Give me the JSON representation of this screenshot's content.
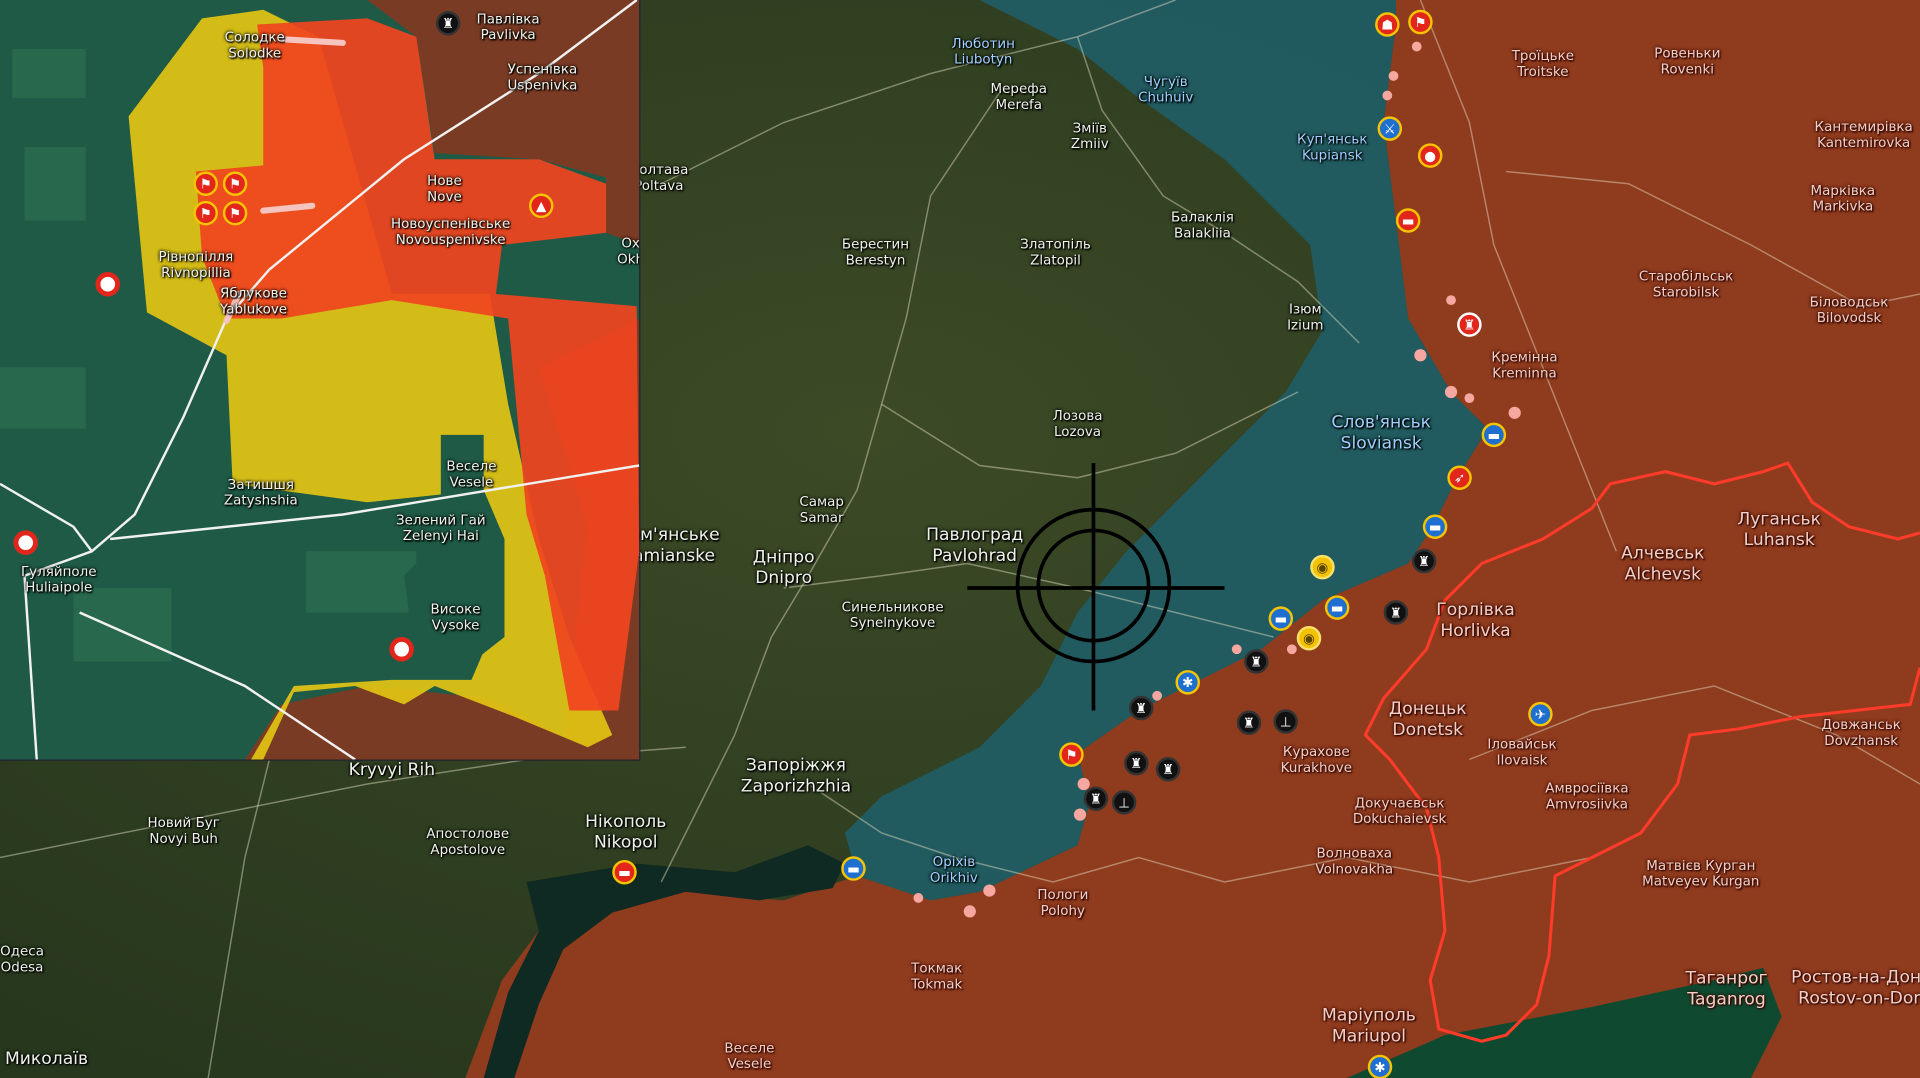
{
  "colors": {
    "occupied": "#8f3b1e",
    "contested_blue": "#1f5f6a",
    "inset_red": "#f0451f",
    "inset_yellow": "#e3c413",
    "border_line": "#ff3b2a",
    "marker_red": "#e3261b",
    "marker_blue": "#1e6fd0",
    "marker_ring": "#f6c400"
  },
  "main_labels": [
    {
      "uk": "Люботин",
      "en": "Liubotyn",
      "zone": "blue"
    },
    {
      "uk": "Мерефа",
      "en": "Merefa",
      "zone": "free"
    },
    {
      "uk": "Змiїв",
      "en": "Zmiiv",
      "zone": "free"
    },
    {
      "uk": "Чугуїв",
      "en": "Chuhuiv",
      "zone": "blue"
    },
    {
      "uk": "Полтава",
      "en": "Poltava",
      "zone": "free"
    },
    {
      "uk": "Берестин",
      "en": "Berestyn",
      "zone": "free"
    },
    {
      "uk": "Златопіль",
      "en": "Zlatopil",
      "zone": "free"
    },
    {
      "uk": "Балаклія",
      "en": "Balakliia",
      "zone": "free"
    },
    {
      "uk": "Ізюм",
      "en": "Izium",
      "zone": "free"
    },
    {
      "uk": "Лозова",
      "en": "Lozova",
      "zone": "free"
    },
    {
      "uk": "Самар",
      "en": "Samar",
      "zone": "free"
    },
    {
      "uk": "Павлоград",
      "en": "Pavlohrad",
      "zone": "big"
    },
    {
      "uk": "Дніпро",
      "en": "Dnipro",
      "zone": "big"
    },
    {
      "uk": "Кам'янське",
      "en": "Kamianske",
      "zone": "big"
    },
    {
      "uk": "Синельникове",
      "en": "Synelnykove",
      "zone": "free"
    },
    {
      "uk": "Запоріжжя",
      "en": "Zaporizhzhia",
      "zone": "big"
    },
    {
      "uk": "",
      "en": "Kryvyi Rih",
      "zone": "big"
    },
    {
      "uk": "Новий Буг",
      "en": "Novyi Buh",
      "zone": "free"
    },
    {
      "uk": "Апостолове",
      "en": "Apostolove",
      "zone": "free"
    },
    {
      "uk": "Нікополь",
      "en": "Nikopol",
      "zone": "big"
    },
    {
      "uk": "Одеса",
      "en": "Odesa",
      "zone": "free"
    },
    {
      "uk": "Миколаїв",
      "en": "",
      "zone": "big"
    },
    {
      "uk": "Оріхів",
      "en": "Orikhiv",
      "zone": "blue"
    },
    {
      "uk": "Пологи",
      "en": "Polohy",
      "zone": "occ"
    },
    {
      "uk": "Токмак",
      "en": "Tokmak",
      "zone": "occ"
    },
    {
      "uk": "Веселе",
      "en": "Vesele",
      "zone": "occ"
    },
    {
      "uk": "Троїцьке",
      "en": "Troitske",
      "zone": "occ"
    },
    {
      "uk": "Ровеньки",
      "en": "Rovenki",
      "zone": "occ"
    },
    {
      "uk": "Кантемирівка",
      "en": "Kantemirovka",
      "zone": "occ"
    },
    {
      "uk": "Куп'янськ",
      "en": "Kupiansk",
      "zone": "blue"
    },
    {
      "uk": "Марківка",
      "en": "Markivka",
      "zone": "occ"
    },
    {
      "uk": "Старобільськ",
      "en": "Starobilsk",
      "zone": "occ"
    },
    {
      "uk": "Біловодськ",
      "en": "Bilovodsk",
      "zone": "occ"
    },
    {
      "uk": "Кремінна",
      "en": "Kreminna",
      "zone": "occ"
    },
    {
      "uk": "Слов'янськ",
      "en": "Sloviansk",
      "zone": "bigblue"
    },
    {
      "uk": "Луганськ",
      "en": "Luhansk",
      "zone": "bigocc"
    },
    {
      "uk": "Алчевськ",
      "en": "Alchevsk",
      "zone": "bigocc"
    },
    {
      "uk": "Горлівка",
      "en": "Horlivka",
      "zone": "bigocc"
    },
    {
      "uk": "Донецьк",
      "en": "Donetsk",
      "zone": "bigocc"
    },
    {
      "uk": "Курахове",
      "en": "Kurakhove",
      "zone": "occ"
    },
    {
      "uk": "Іловайськ",
      "en": "Ilovaisk",
      "zone": "occ"
    },
    {
      "uk": "Довжанськ",
      "en": "Dovzhansk",
      "zone": "occ"
    },
    {
      "uk": "Докучаєвськ",
      "en": "Dokuchaievsk",
      "zone": "occ"
    },
    {
      "uk": "Амвросіївка",
      "en": "Amvrosiivka",
      "zone": "occ"
    },
    {
      "uk": "Волноваха",
      "en": "Volnovakha",
      "zone": "occ"
    },
    {
      "uk": "Матвієв Курган",
      "en": "Matveyev Kurgan",
      "zone": "occ"
    },
    {
      "uk": "Маріуполь",
      "en": "Mariupol",
      "zone": "bigocc"
    },
    {
      "uk": "Таганрог",
      "en": "Taganrog",
      "zone": "bigocc"
    },
    {
      "uk": "Ростов-на-Дону",
      "en": "Rostov-on-Don",
      "zone": "bigocc"
    }
  ],
  "inset_labels": [
    {
      "uk": "Солодке",
      "en": "Solodke"
    },
    {
      "uk": "Павлівка",
      "en": "Pavlivka"
    },
    {
      "uk": "Успенівка",
      "en": "Uspenivka"
    },
    {
      "uk": "Нове",
      "en": "Nove"
    },
    {
      "uk": "Новоуспенівське",
      "en": "Novouspenivske"
    },
    {
      "uk": "Рівнопілля",
      "en": "Rivnopillia"
    },
    {
      "uk": "Яблукове",
      "en": "Yablukove"
    },
    {
      "uk": "Затишшя",
      "en": "Zatyshshia"
    },
    {
      "uk": "Веселе",
      "en": "Vesele"
    },
    {
      "uk": "Зелений Гай",
      "en": "Zelenyi Hai"
    },
    {
      "uk": "Гуляйполе",
      "en": "Huliaipole"
    },
    {
      "uk": "Високе",
      "en": "Vysoke"
    },
    {
      "uk": "Ох",
      "en": "Okh"
    }
  ],
  "main_markers": [
    {
      "icon": "ghost",
      "style": "red"
    },
    {
      "icon": "flag",
      "style": "red"
    },
    {
      "icon": "tank",
      "style": "blue"
    },
    {
      "icon": "target",
      "style": "red"
    },
    {
      "icon": "vehicle",
      "style": "red"
    },
    {
      "icon": "fortification",
      "style": "redplain"
    },
    {
      "icon": "vehicle",
      "style": "blue"
    },
    {
      "icon": "rocket",
      "style": "red"
    },
    {
      "icon": "vehicle",
      "style": "blue"
    },
    {
      "icon": "fortification",
      "style": "black"
    },
    {
      "icon": "eye",
      "style": "yellow"
    },
    {
      "icon": "vehicle",
      "style": "blue"
    },
    {
      "icon": "vehicle",
      "style": "blue"
    },
    {
      "icon": "eye",
      "style": "yellow"
    },
    {
      "icon": "fortification",
      "style": "black"
    },
    {
      "icon": "fortification",
      "style": "black"
    },
    {
      "icon": "star",
      "style": "blue"
    },
    {
      "icon": "fortification",
      "style": "black"
    },
    {
      "icon": "fortification",
      "style": "black"
    },
    {
      "icon": "monument",
      "style": "black"
    },
    {
      "icon": "flag",
      "style": "red"
    },
    {
      "icon": "fortification",
      "style": "black"
    },
    {
      "icon": "fortification",
      "style": "black"
    },
    {
      "icon": "fortification",
      "style": "black"
    },
    {
      "icon": "monument",
      "style": "black"
    },
    {
      "icon": "vehicle",
      "style": "blue"
    },
    {
      "icon": "vehicle",
      "style": "red"
    },
    {
      "icon": "plane",
      "style": "blue"
    },
    {
      "icon": "star",
      "style": "blue"
    }
  ],
  "inset_markers": [
    {
      "icon": "flag",
      "style": "red"
    },
    {
      "icon": "flag",
      "style": "red"
    },
    {
      "icon": "flag",
      "style": "red"
    },
    {
      "icon": "flag",
      "style": "red"
    },
    {
      "icon": "warning",
      "style": "red"
    },
    {
      "icon": "target",
      "style": "target"
    },
    {
      "icon": "target",
      "style": "target"
    },
    {
      "icon": "target",
      "style": "target"
    },
    {
      "icon": "fortification",
      "style": "black"
    }
  ]
}
